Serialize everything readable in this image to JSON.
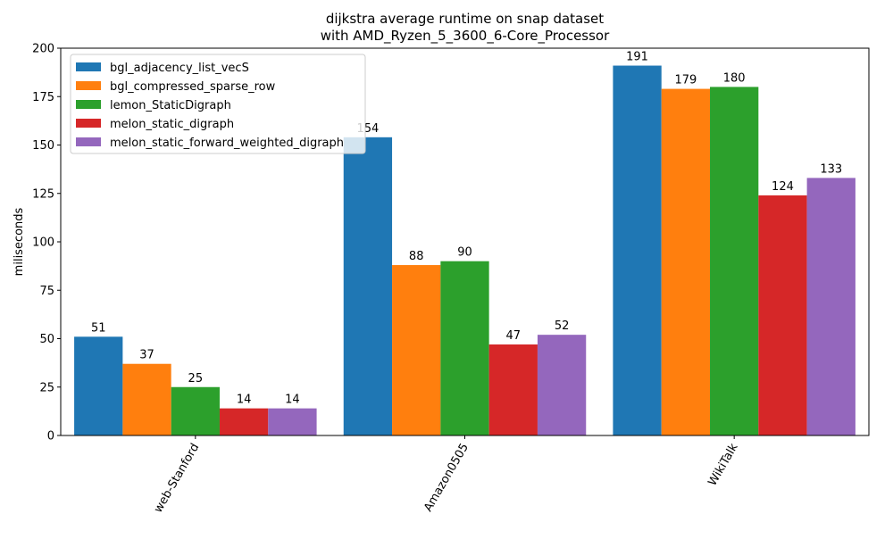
{
  "chart_data": {
    "type": "bar",
    "title_line1": "dijkstra average runtime on snap dataset",
    "title_line2": "with AMD_Ryzen_5_3600_6-Core_Processor",
    "xlabel": "",
    "ylabel": "miliseconds",
    "ylim": [
      0,
      200
    ],
    "yticks": [
      "0",
      "25",
      "50",
      "75",
      "100",
      "125",
      "150",
      "175",
      "200"
    ],
    "categories": [
      "web-Stanford",
      "Amazon0505",
      "WikiTalk"
    ],
    "legend_position": "top-left",
    "grid": false,
    "series": [
      {
        "name": "bgl_adjacency_list_vecS",
        "color": "#1f77b4",
        "values": [
          51,
          154,
          191
        ]
      },
      {
        "name": "bgl_compressed_sparse_row",
        "color": "#ff7f0e",
        "values": [
          37,
          88,
          179
        ]
      },
      {
        "name": "lemon_StaticDigraph",
        "color": "#2ca02c",
        "values": [
          25,
          90,
          180
        ]
      },
      {
        "name": "melon_static_digraph",
        "color": "#d62728",
        "values": [
          14,
          47,
          124
        ]
      },
      {
        "name": "melon_static_forward_weighted_digraph",
        "color": "#9467bd",
        "values": [
          14,
          52,
          133
        ]
      }
    ]
  }
}
